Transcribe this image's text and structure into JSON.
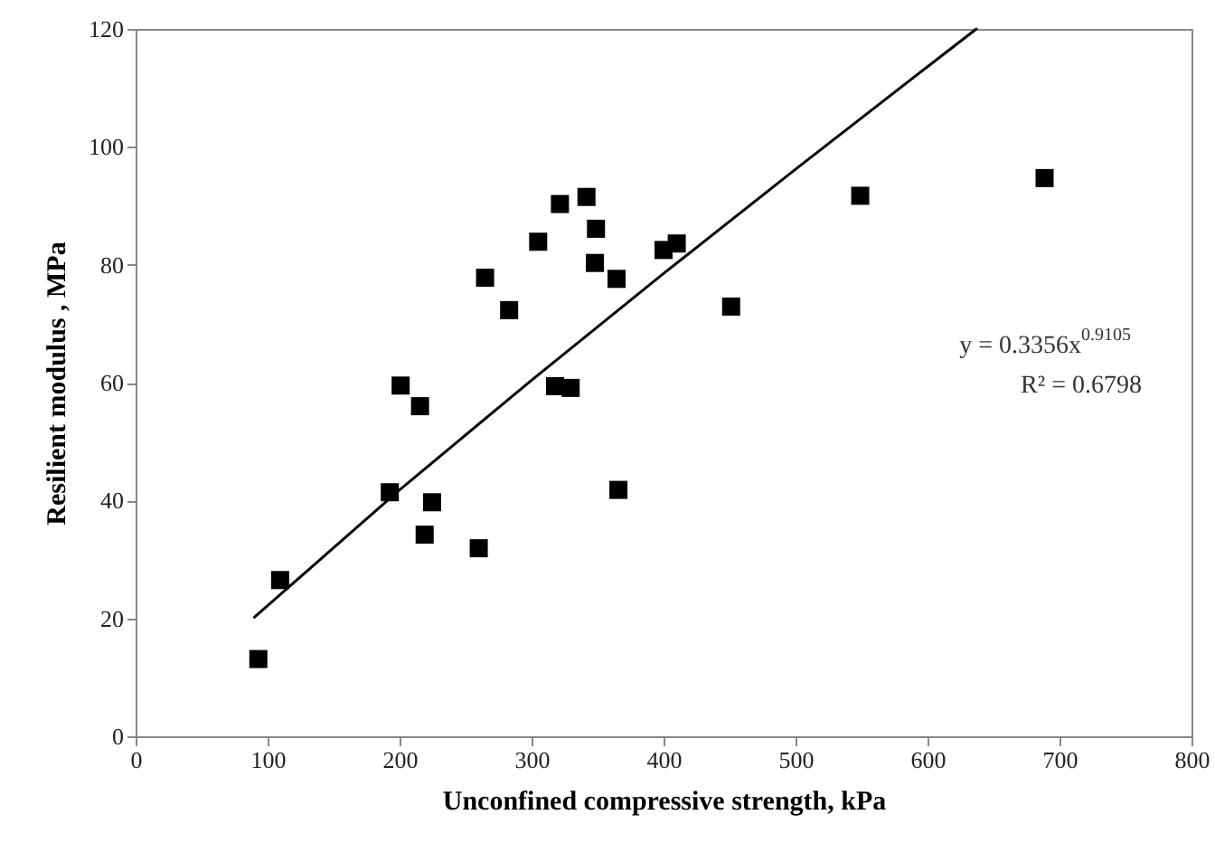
{
  "chart_data": {
    "type": "scatter",
    "xlabel": "Unconfined compressive strength, kPa",
    "ylabel": "Resilient modulus , MPa",
    "xlim": [
      0,
      800
    ],
    "xticks": [
      0,
      100,
      200,
      300,
      400,
      500,
      600,
      700,
      800
    ],
    "ylim": [
      0,
      120
    ],
    "yticks": [
      0,
      20,
      40,
      60,
      80,
      100,
      120
    ],
    "grid": false,
    "marker": "square",
    "series": [
      {
        "color": "#000000",
        "x": [
          93,
          109.5,
          192.6,
          200.8,
          215.5,
          219,
          224.6,
          260,
          264.8,
          283,
          305,
          317.8,
          321.5,
          329.6,
          341.6,
          348.8,
          348,
          364.4,
          365.8,
          400,
          410,
          451.2,
          549,
          688.7
        ],
        "values": [
          13.1,
          26.5,
          41.4,
          59.5,
          56,
          34.2,
          39.7,
          31.9,
          77.8,
          72.3,
          83.9,
          59.4,
          90.3,
          59.1,
          91.5,
          86.1,
          80.3,
          77.6,
          41.8,
          82.5,
          83.6,
          72.9,
          91.7,
          94.7
        ]
      },
      {
        "type": "line",
        "color": "#000000",
        "marker": "none",
        "x": [
          90,
          200,
          300,
          400,
          500,
          600,
          637
        ],
        "values": [
          20.2,
          41.8,
          60.4,
          78.5,
          96.2,
          113.6,
          120
        ]
      }
    ],
    "annotations": [
      "y = 0.3356x$^{0.9105}$",
      "R² = 0.6798"
    ]
  }
}
